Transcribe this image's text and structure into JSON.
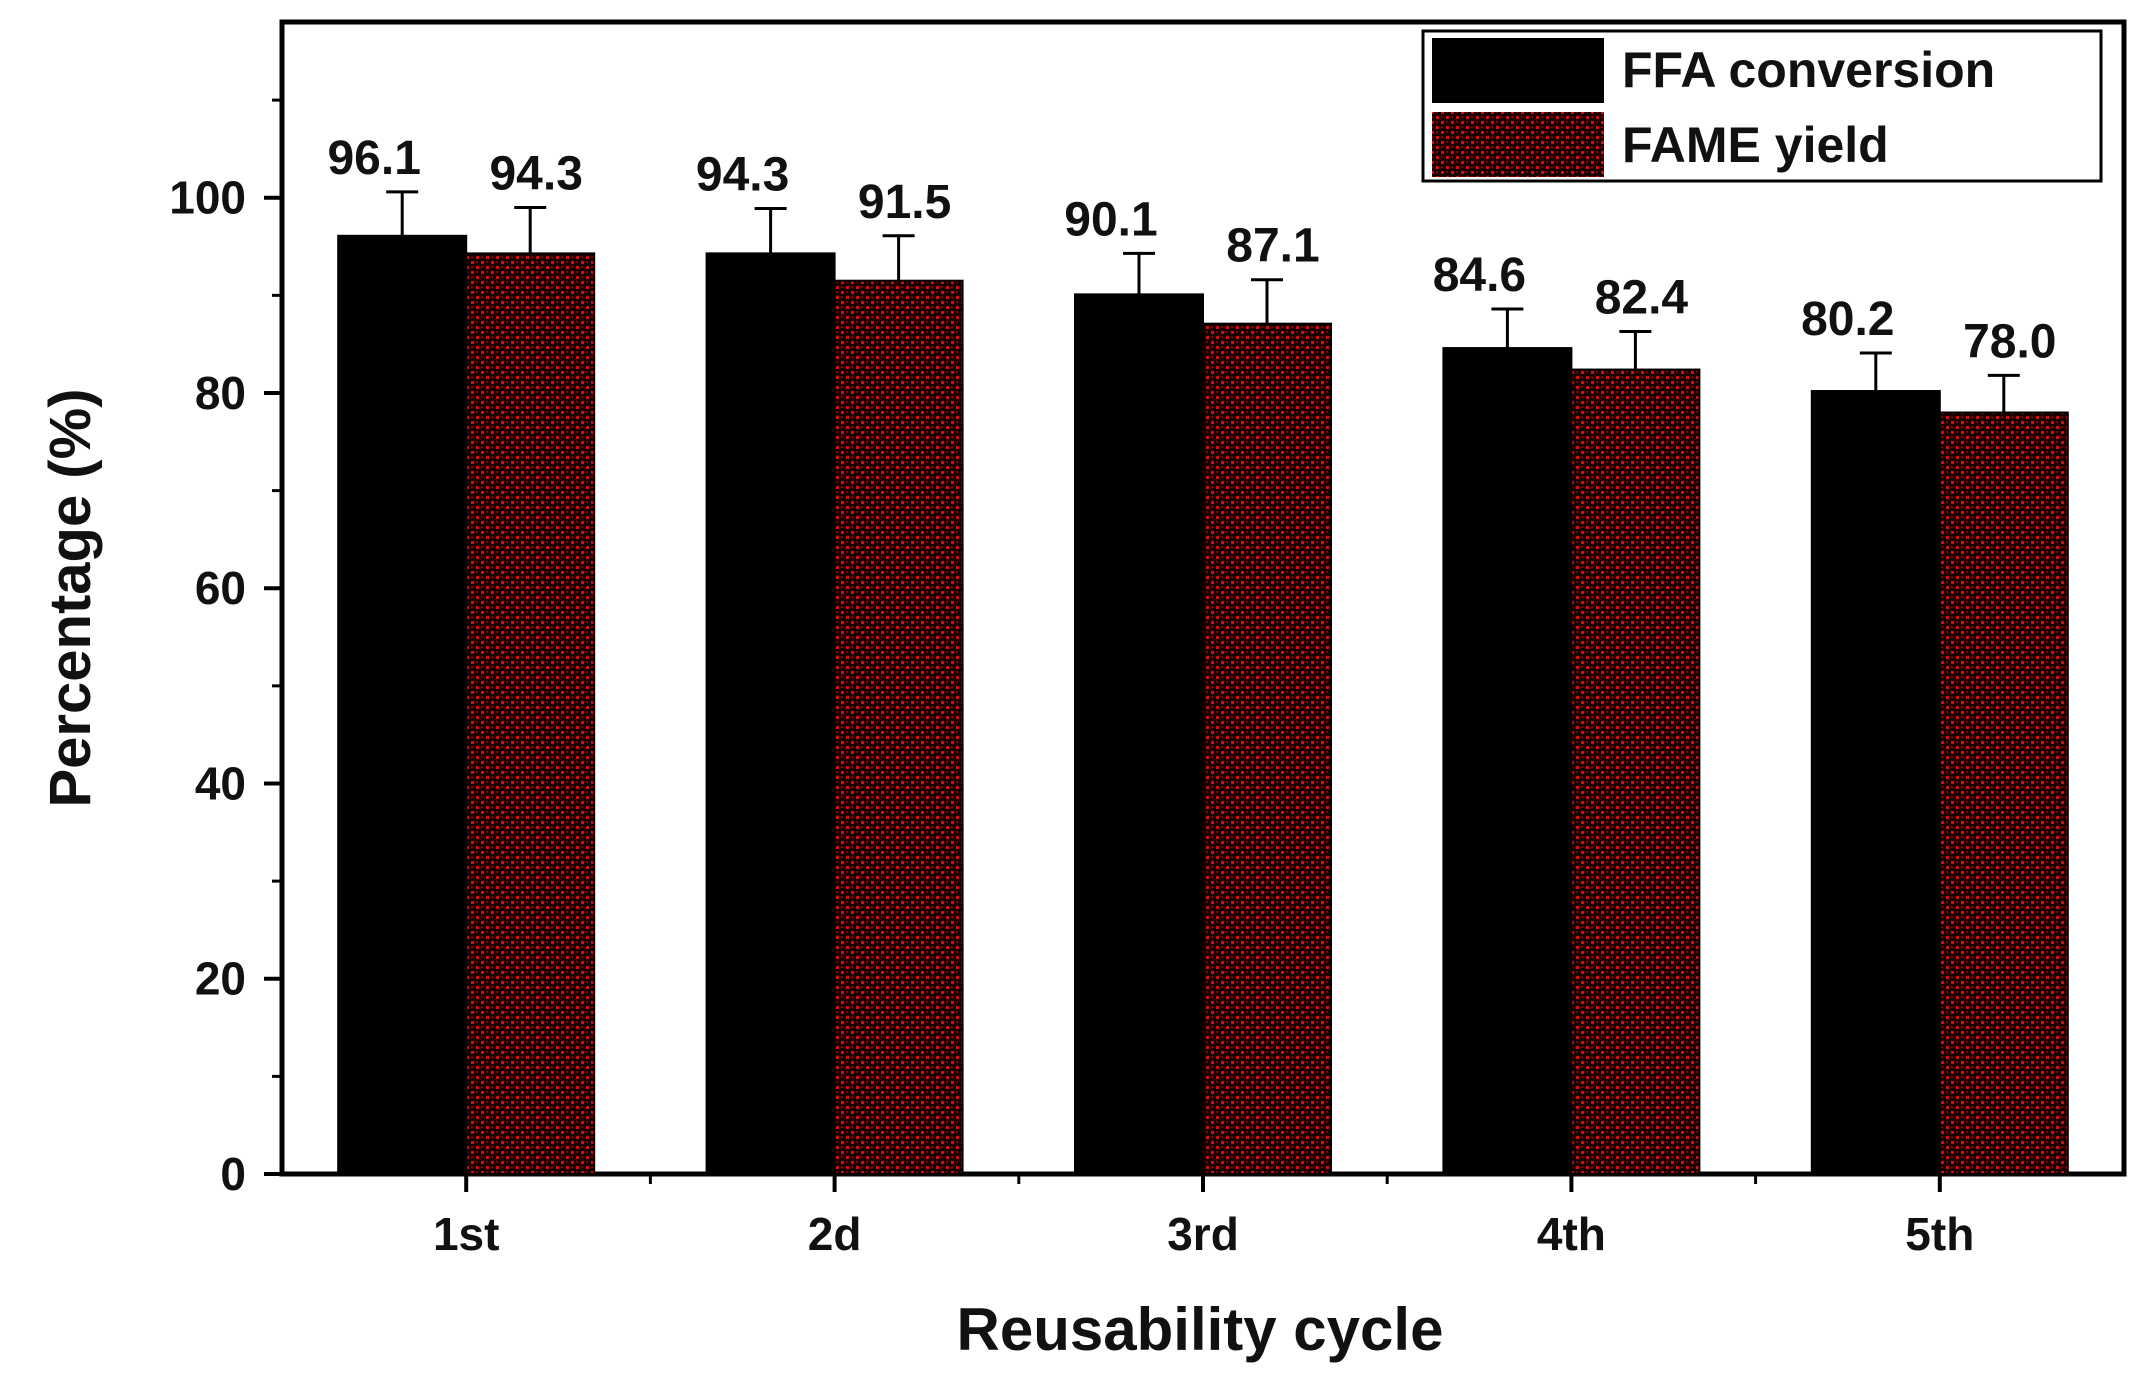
{
  "chart_data": {
    "type": "bar",
    "title": "",
    "xlabel": "Reusability cycle",
    "ylabel": "Percentage (%)",
    "categories": [
      "1st",
      "2d",
      "3rd",
      "4th",
      "5th"
    ],
    "ylim": [
      0,
      118
    ],
    "yticks": [
      0,
      20,
      40,
      60,
      80,
      100
    ],
    "grid": false,
    "legend_position": "top-right",
    "series": [
      {
        "name": "FFA conversion",
        "color": "#000000",
        "values": [
          96.1,
          94.3,
          90.1,
          84.6,
          80.2
        ],
        "labels": [
          "96.1",
          "94.3",
          "90.1",
          "84.6",
          "80.2"
        ],
        "errors": [
          4.5,
          4.6,
          4.2,
          4.0,
          3.9
        ]
      },
      {
        "name": "FAME yield",
        "color": "#b00000",
        "pattern": "black-red-crosshatch",
        "values": [
          94.3,
          91.5,
          87.1,
          82.4,
          78.0
        ],
        "labels": [
          "94.3",
          "91.5",
          "87.1",
          "82.4",
          "78.0"
        ],
        "errors": [
          4.7,
          4.6,
          4.5,
          3.9,
          3.8
        ]
      }
    ]
  }
}
